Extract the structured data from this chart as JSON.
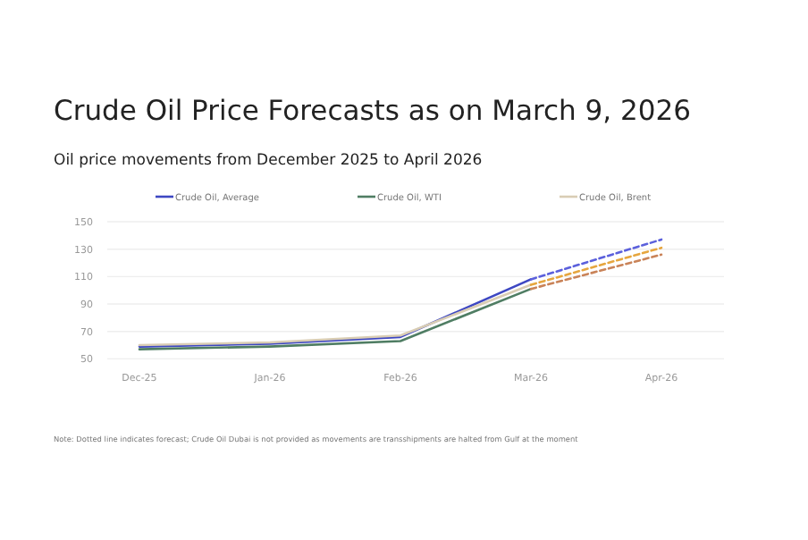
{
  "chart_data": {
    "type": "line",
    "title": "Crude Oil Price Forecasts as on March 9, 2026",
    "subtitle": "Oil price movements from December 2025 to April 2026",
    "categories": [
      "Dec-25",
      "Jan-26",
      "Feb-26",
      "Mar-26",
      "Apr-26"
    ],
    "series": [
      {
        "name": "Crude Oil, Average",
        "color": "#3d47c2",
        "values": [
          59,
          61,
          66,
          108,
          null
        ]
      },
      {
        "name": "Crude Oil, WTI",
        "color": "#4f7d63",
        "values": [
          57,
          59,
          63,
          101,
          null
        ]
      },
      {
        "name": "Crude Oil, Brent",
        "color": "#d9cdb4",
        "values": [
          60,
          62,
          67,
          104,
          null
        ]
      },
      {
        "color": "#5b60dc",
        "line_style": "dashed",
        "x": [
          "Mar-26",
          "Apr-26"
        ],
        "values": [
          108,
          137
        ]
      },
      {
        "color": "#c98358",
        "line_style": "dashed",
        "x": [
          "Mar-26",
          "Apr-26"
        ],
        "values": [
          101,
          126
        ]
      },
      {
        "color": "#e6a63e",
        "line_style": "dashed",
        "x": [
          "Mar-26",
          "Apr-26"
        ],
        "values": [
          104,
          131
        ]
      }
    ],
    "ylim": [
      50,
      150
    ],
    "yticks": [
      50,
      70,
      90,
      110,
      130,
      150
    ],
    "grid": "y",
    "legend": "top",
    "line_style": "solid",
    "annotations": [
      "Note: Dotted line indicates forecast; Crude Oil Dubai is not provided as movements are transshipments are halted from Gulf at the moment"
    ]
  }
}
